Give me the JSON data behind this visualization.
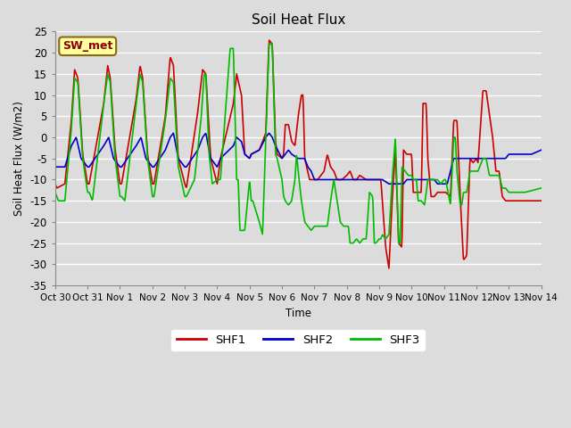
{
  "title": "Soil Heat Flux",
  "ylabel": "Soil Heat Flux (W/m2)",
  "xlabel": "Time",
  "ylim": [
    -35,
    25
  ],
  "bg_color": "#dcdcdc",
  "plot_bg_color": "#dcdcdc",
  "grid_color": "#ffffff",
  "annotation_text": "SW_met",
  "annotation_bg": "#ffffa0",
  "annotation_border": "#8B6914",
  "shf1_color": "#cc0000",
  "shf2_color": "#0000cc",
  "shf3_color": "#00bb00",
  "linewidth": 1.2,
  "xtick_labels": [
    "Oct 30",
    "Oct 31",
    "Nov 1",
    "Nov 2",
    "Nov 3",
    "Nov 4",
    "Nov 5",
    "Nov 6",
    "Nov 7",
    "Nov 8",
    "Nov 9",
    "Nov 10",
    "Nov 11",
    "Nov 12",
    "Nov 13",
    "Nov 14"
  ],
  "ytick_labels": [
    -35,
    -30,
    -25,
    -20,
    -15,
    -10,
    -5,
    0,
    5,
    10,
    15,
    20,
    25
  ]
}
